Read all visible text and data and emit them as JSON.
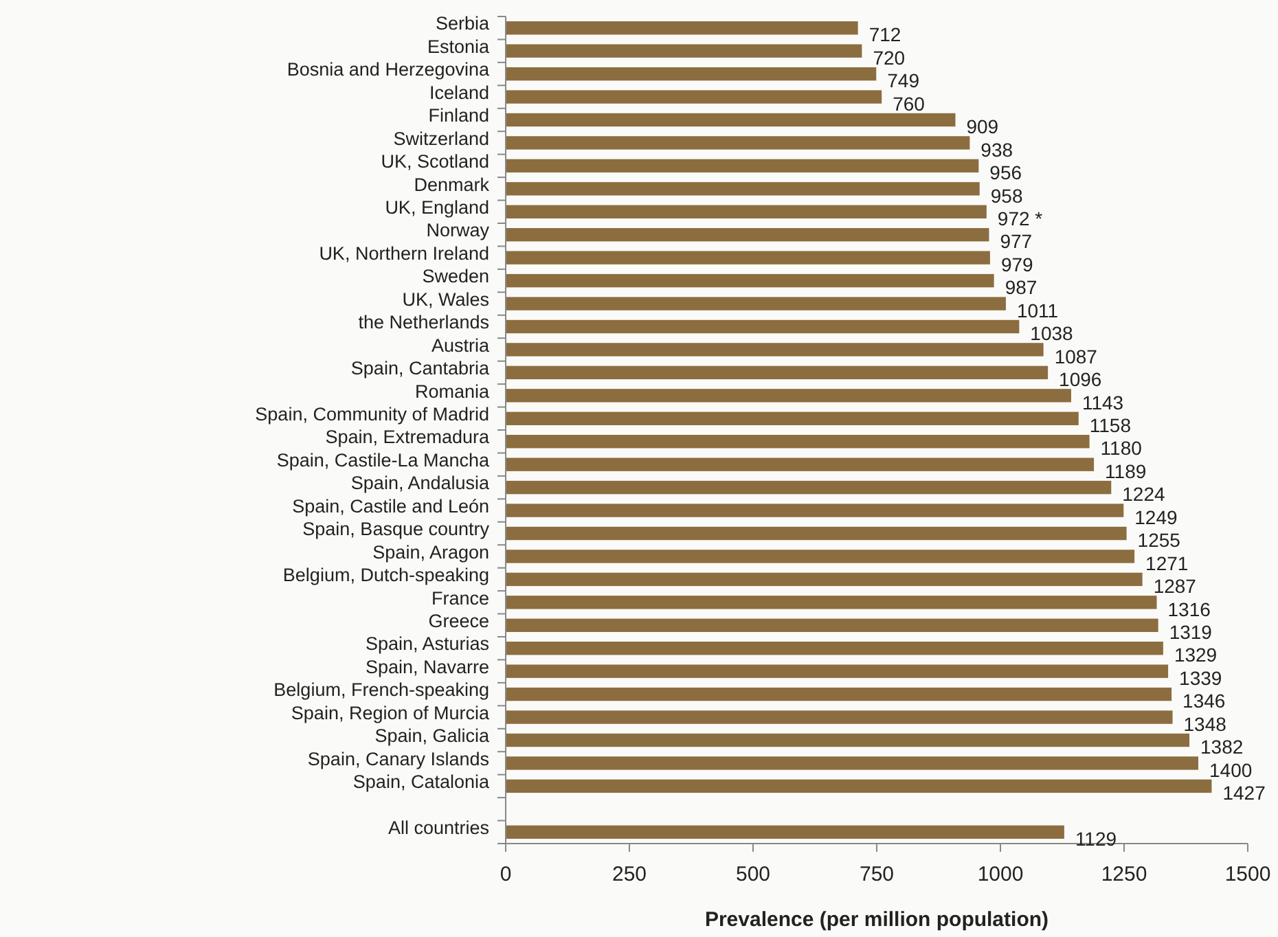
{
  "chart_data": {
    "type": "bar",
    "orientation": "horizontal",
    "xlabel": "Prevalence (per million population)",
    "categories": [
      "Serbia",
      "Estonia",
      "Bosnia and Herzegovina",
      "Iceland",
      "Finland",
      "Switzerland",
      "UK, Scotland",
      "Denmark",
      "UK, England",
      "Norway",
      "UK, Northern Ireland",
      "Sweden",
      "UK, Wales",
      "the Netherlands",
      "Austria",
      "Spain, Cantabria",
      "Romania",
      "Spain, Community of Madrid",
      "Spain, Extremadura",
      "Spain, Castile-La Mancha",
      "Spain, Andalusia",
      "Spain, Castile and León",
      "Spain, Basque country",
      "Spain, Aragon",
      "Belgium, Dutch-speaking",
      "France",
      "Greece",
      "Spain, Asturias",
      "Spain, Navarre",
      "Belgium, French-speaking",
      "Spain, Region of Murcia",
      "Spain, Galicia",
      "Spain, Canary Islands",
      "Spain, Catalonia",
      null,
      "All countries"
    ],
    "values": [
      712,
      720,
      749,
      760,
      909,
      938,
      956,
      958,
      972,
      977,
      979,
      987,
      1011,
      1038,
      1087,
      1096,
      1143,
      1158,
      1180,
      1189,
      1224,
      1249,
      1255,
      1271,
      1287,
      1316,
      1319,
      1329,
      1339,
      1346,
      1348,
      1382,
      1400,
      1427,
      null,
      1129
    ],
    "value_labels": [
      "712",
      "720",
      "749",
      "760",
      "909",
      "938",
      "956",
      "958",
      "972 *",
      "977",
      "979",
      "987",
      "1011",
      "1038",
      "1087",
      "1096",
      "1143",
      "1158",
      "1180",
      "1189",
      "1224",
      "1249",
      "1255",
      "1271",
      "1287",
      "1316",
      "1319",
      "1329",
      "1339",
      "1346",
      "1348",
      "1382",
      "1400",
      "1427",
      null,
      "1129"
    ],
    "color": "#8b6d3f",
    "xlim": [
      0,
      1500
    ],
    "xticks": [
      0,
      250,
      500,
      750,
      1000,
      1250,
      1500
    ],
    "grid": false
  }
}
